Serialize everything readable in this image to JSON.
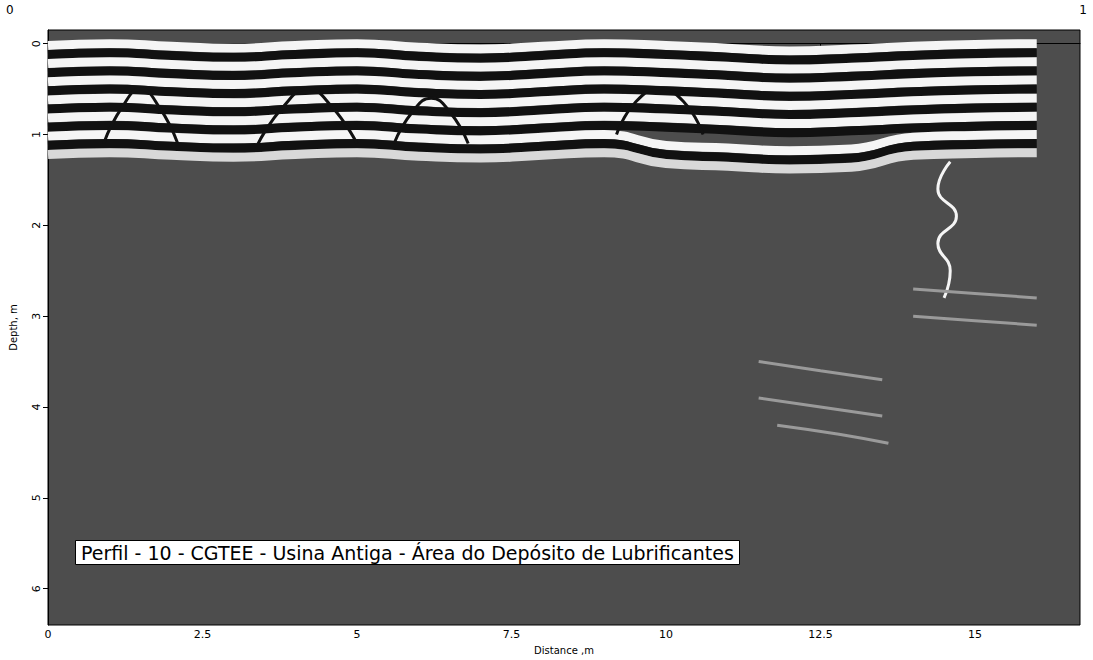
{
  "chart_data": {
    "type": "radargram",
    "title": "Perfil - 10 - CGTEE - Usina Antiga - Área do Depósito de Lubrificantes",
    "annotations": [
      "0",
      "1"
    ],
    "x_label": "Distance ,m",
    "y_label": "Depth, m",
    "xlim": [
      0,
      16.7
    ],
    "xticks": [
      0,
      2.5,
      5,
      7.5,
      10,
      12.5,
      15
    ],
    "ylim": [
      -0.15,
      6.4
    ],
    "yticks": [
      0,
      1,
      2,
      3,
      4,
      5,
      6
    ],
    "grid": false,
    "color": "#4d4d4d",
    "series": [
      {
        "type": "band",
        "color": "#f5f5f5",
        "line_style": "solid",
        "x": [
          0,
          1,
          2,
          3,
          4,
          5,
          6,
          7,
          8,
          9,
          10,
          11,
          12,
          13,
          14,
          15,
          16
        ],
        "values": [
          0.02,
          0,
          0.03,
          0.05,
          0.02,
          0,
          0.04,
          0.06,
          0.03,
          0,
          0.02,
          0.05,
          0.08,
          0.06,
          0.03,
          0.01,
          0
        ]
      },
      {
        "type": "band",
        "color": "#111111",
        "line_style": "solid",
        "x": [
          0,
          1,
          2,
          3,
          4,
          5,
          6,
          7,
          8,
          9,
          10,
          11,
          12,
          13,
          14,
          15,
          16
        ],
        "values": [
          0.12,
          0.1,
          0.13,
          0.15,
          0.12,
          0.1,
          0.14,
          0.16,
          0.13,
          0.1,
          0.12,
          0.15,
          0.18,
          0.16,
          0.13,
          0.11,
          0.1
        ]
      },
      {
        "type": "band",
        "color": "#f5f5f5",
        "line_style": "solid",
        "x": [
          0,
          1,
          2,
          3,
          4,
          5,
          6,
          7,
          8,
          9,
          10,
          11,
          12,
          13,
          14,
          15,
          16
        ],
        "values": [
          0.22,
          0.2,
          0.23,
          0.25,
          0.22,
          0.2,
          0.24,
          0.26,
          0.23,
          0.2,
          0.22,
          0.25,
          0.28,
          0.26,
          0.23,
          0.21,
          0.2
        ]
      },
      {
        "type": "band",
        "color": "#111111",
        "line_style": "solid",
        "x": [
          0,
          1,
          2,
          3,
          4,
          5,
          6,
          7,
          8,
          9,
          10,
          11,
          12,
          13,
          14,
          15,
          16
        ],
        "values": [
          0.32,
          0.3,
          0.33,
          0.35,
          0.32,
          0.3,
          0.34,
          0.36,
          0.33,
          0.3,
          0.32,
          0.35,
          0.38,
          0.36,
          0.33,
          0.31,
          0.3
        ]
      },
      {
        "type": "band",
        "color": "#f5f5f5",
        "line_style": "solid",
        "x": [
          0,
          1,
          2,
          3,
          4,
          5,
          6,
          7,
          8,
          9,
          10,
          11,
          12,
          13,
          14,
          15,
          16
        ],
        "values": [
          0.42,
          0.4,
          0.43,
          0.45,
          0.42,
          0.4,
          0.44,
          0.46,
          0.43,
          0.4,
          0.42,
          0.45,
          0.48,
          0.46,
          0.43,
          0.41,
          0.4
        ]
      },
      {
        "type": "band",
        "color": "#111111",
        "line_style": "solid",
        "x": [
          0,
          1,
          2,
          3,
          4,
          5,
          6,
          7,
          8,
          9,
          10,
          11,
          12,
          13,
          14,
          15,
          16
        ],
        "values": [
          0.52,
          0.5,
          0.53,
          0.55,
          0.52,
          0.5,
          0.54,
          0.56,
          0.53,
          0.5,
          0.52,
          0.55,
          0.58,
          0.56,
          0.53,
          0.51,
          0.5
        ]
      },
      {
        "type": "band",
        "color": "#f5f5f5",
        "line_style": "solid",
        "x": [
          0,
          1,
          2,
          3,
          4,
          5,
          6,
          7,
          8,
          9,
          10,
          11,
          12,
          13,
          14,
          15,
          16
        ],
        "values": [
          0.62,
          0.6,
          0.63,
          0.65,
          0.62,
          0.6,
          0.64,
          0.66,
          0.63,
          0.6,
          0.62,
          0.65,
          0.68,
          0.66,
          0.63,
          0.61,
          0.6
        ]
      },
      {
        "type": "band",
        "color": "#111111",
        "line_style": "solid",
        "x": [
          0,
          1,
          2,
          3,
          4,
          5,
          6,
          7,
          8,
          9,
          10,
          11,
          12,
          13,
          14,
          15,
          16
        ],
        "values": [
          0.72,
          0.7,
          0.73,
          0.75,
          0.72,
          0.7,
          0.74,
          0.76,
          0.73,
          0.7,
          0.72,
          0.75,
          0.78,
          0.76,
          0.73,
          0.71,
          0.7
        ]
      },
      {
        "type": "band",
        "color": "#f5f5f5",
        "line_style": "solid",
        "x": [
          0,
          1,
          2,
          3,
          4,
          5,
          6,
          7,
          8,
          9,
          10,
          11,
          12,
          13,
          14,
          15,
          16
        ],
        "values": [
          0.82,
          0.8,
          0.83,
          0.85,
          0.82,
          0.8,
          0.84,
          0.86,
          0.83,
          0.8,
          0.82,
          0.85,
          0.88,
          0.86,
          0.83,
          0.81,
          0.8
        ]
      },
      {
        "type": "band",
        "color": "#111111",
        "line_style": "solid",
        "x": [
          0,
          1,
          2,
          3,
          4,
          5,
          6,
          7,
          8,
          9,
          10,
          11,
          12,
          13,
          14,
          15,
          16
        ],
        "values": [
          0.92,
          0.9,
          0.93,
          0.95,
          0.92,
          0.9,
          0.94,
          0.96,
          0.93,
          0.9,
          0.92,
          0.95,
          0.98,
          0.96,
          0.93,
          0.91,
          0.9
        ]
      },
      {
        "type": "band",
        "color": "#f5f5f5",
        "line_style": "solid",
        "x": [
          0,
          1,
          2,
          3,
          4,
          5,
          6,
          7,
          8,
          9,
          10,
          11,
          12,
          13,
          14,
          15,
          16
        ],
        "values": [
          1.02,
          1.0,
          1.03,
          1.05,
          1.02,
          1.0,
          1.04,
          1.06,
          1.03,
          1.0,
          1.12,
          1.15,
          1.18,
          1.16,
          1.03,
          1.01,
          1.0
        ]
      },
      {
        "type": "band",
        "color": "#111111",
        "line_style": "solid",
        "x": [
          0,
          1,
          2,
          3,
          4,
          5,
          6,
          7,
          8,
          9,
          10,
          11,
          12,
          13,
          14,
          15,
          16
        ],
        "values": [
          1.12,
          1.1,
          1.13,
          1.15,
          1.12,
          1.1,
          1.14,
          1.16,
          1.13,
          1.1,
          1.22,
          1.25,
          1.28,
          1.26,
          1.13,
          1.11,
          1.1
        ]
      },
      {
        "type": "band",
        "color": "#d8d8d8",
        "line_style": "solid",
        "x": [
          0,
          1,
          2,
          3,
          4,
          5,
          6,
          7,
          8,
          9,
          10,
          11,
          12,
          13,
          14,
          15,
          16
        ],
        "values": [
          1.22,
          1.2,
          1.23,
          1.25,
          1.22,
          1.2,
          1.24,
          1.26,
          1.23,
          1.2,
          1.32,
          1.35,
          1.38,
          1.36,
          1.23,
          1.21,
          1.2
        ]
      },
      {
        "type": "line",
        "color": "#111111",
        "line_style": "solid",
        "x": [
          0.9,
          1.2,
          1.5,
          1.8,
          2.1
        ],
        "values": [
          1.1,
          0.7,
          0.5,
          0.7,
          1.1
        ]
      },
      {
        "type": "line",
        "color": "#111111",
        "line_style": "solid",
        "x": [
          3.4,
          3.8,
          4.2,
          4.6,
          5.0
        ],
        "values": [
          1.1,
          0.7,
          0.5,
          0.7,
          1.1
        ]
      },
      {
        "type": "line",
        "color": "#111111",
        "line_style": "solid",
        "x": [
          5.6,
          5.9,
          6.2,
          6.5,
          6.8
        ],
        "values": [
          1.1,
          0.75,
          0.6,
          0.75,
          1.1
        ]
      },
      {
        "type": "line",
        "color": "#111111",
        "line_style": "solid",
        "x": [
          9.2,
          9.5,
          9.9,
          10.3,
          10.6
        ],
        "values": [
          1.0,
          0.65,
          0.5,
          0.65,
          1.0
        ]
      },
      {
        "type": "line",
        "color": "#f5f5f5",
        "line_style": "solid",
        "x": [
          14.6,
          14.4,
          14.7,
          14.4,
          14.6,
          14.5
        ],
        "values": [
          1.3,
          1.6,
          1.9,
          2.2,
          2.5,
          2.8
        ]
      },
      {
        "type": "line",
        "color": "#9a9a9a",
        "line_style": "solid",
        "x": [
          11.5,
          12.5,
          13.5
        ],
        "values": [
          3.5,
          3.6,
          3.7
        ]
      },
      {
        "type": "line",
        "color": "#9a9a9a",
        "line_style": "solid",
        "x": [
          11.5,
          12.5,
          13.5
        ],
        "values": [
          3.9,
          4.0,
          4.1
        ]
      },
      {
        "type": "line",
        "color": "#9a9a9a",
        "line_style": "solid",
        "x": [
          11.8,
          12.8,
          13.6
        ],
        "values": [
          4.2,
          4.3,
          4.4
        ]
      },
      {
        "type": "line",
        "color": "#9a9a9a",
        "line_style": "solid",
        "x": [
          14.0,
          15.0,
          16.0
        ],
        "values": [
          2.7,
          2.75,
          2.8
        ]
      },
      {
        "type": "line",
        "color": "#9a9a9a",
        "line_style": "solid",
        "x": [
          14.0,
          15.0,
          16.0
        ],
        "values": [
          3.0,
          3.05,
          3.1
        ]
      }
    ]
  }
}
